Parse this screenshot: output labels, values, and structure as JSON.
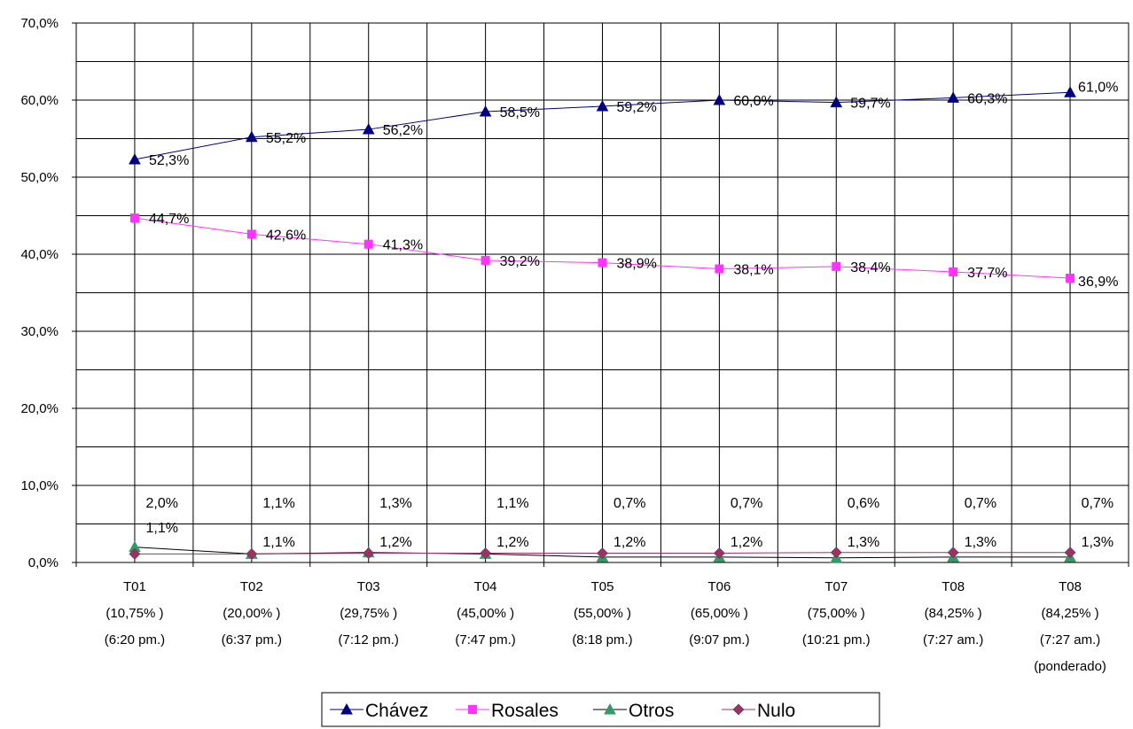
{
  "chart_data": {
    "type": "line",
    "title": "",
    "xlabel": "",
    "ylabel": "",
    "ylim": [
      0,
      70
    ],
    "yticks": [
      "0,0%",
      "10,0%",
      "20,0%",
      "30,0%",
      "40,0%",
      "50,0%",
      "60,0%",
      "70,0%"
    ],
    "grid": true,
    "legend_position": "bottom",
    "categories": [
      [
        "T01",
        "(10,75% )",
        "(6:20 pm.)"
      ],
      [
        "T02",
        "(20,00% )",
        "(6:37 pm.)"
      ],
      [
        "T03",
        "(29,75% )",
        "(7:12 pm.)"
      ],
      [
        "T04",
        "(45,00% )",
        "(7:47 pm.)"
      ],
      [
        "T05",
        "(55,00% )",
        "(8:18 pm.)"
      ],
      [
        "T06",
        "(65,00% )",
        "(9:07 pm.)"
      ],
      [
        "T07",
        "(75,00% )",
        "(10:21 pm.)"
      ],
      [
        "T08",
        "(84,25% )",
        "(7:27 am.)"
      ],
      [
        "T08",
        "(84,25% )",
        "(7:27 am.)",
        "(ponderado)"
      ]
    ],
    "series": [
      {
        "name": "Chávez",
        "color": "#000080",
        "marker": "triangle",
        "values": [
          52.3,
          55.2,
          56.2,
          58.5,
          59.2,
          60.0,
          59.7,
          60.3,
          61.0
        ],
        "labels": [
          "52,3%",
          "55,2%",
          "56,2%",
          "58,5%",
          "59,2%",
          "60,0%",
          "59,7%",
          "60,3%",
          "61,0%"
        ]
      },
      {
        "name": "Rosales",
        "color": "#ff33ff",
        "marker": "square",
        "values": [
          44.7,
          42.6,
          41.3,
          39.2,
          38.9,
          38.1,
          38.4,
          37.7,
          36.9
        ],
        "labels": [
          "44,7%",
          "42,6%",
          "41,3%",
          "39,2%",
          "38,9%",
          "38,1%",
          "38,4%",
          "37,7%",
          "36,9%"
        ]
      },
      {
        "name": "Otros",
        "color": "#339966",
        "marker": "triangle",
        "values": [
          2.0,
          1.1,
          1.3,
          1.1,
          0.7,
          0.7,
          0.6,
          0.7,
          0.7
        ],
        "labels": [
          "2,0%",
          "1,1%",
          "1,3%",
          "1,1%",
          "0,7%",
          "0,7%",
          "0,6%",
          "0,7%",
          "0,7%"
        ]
      },
      {
        "name": "Nulo",
        "color": "#993366",
        "marker": "diamond",
        "values": [
          1.1,
          1.1,
          1.2,
          1.2,
          1.2,
          1.2,
          1.3,
          1.3,
          1.3
        ],
        "labels": [
          "1,1%",
          "1,1%",
          "1,2%",
          "1,2%",
          "1,2%",
          "1,2%",
          "1,3%",
          "1,3%",
          "1,3%"
        ]
      }
    ]
  }
}
